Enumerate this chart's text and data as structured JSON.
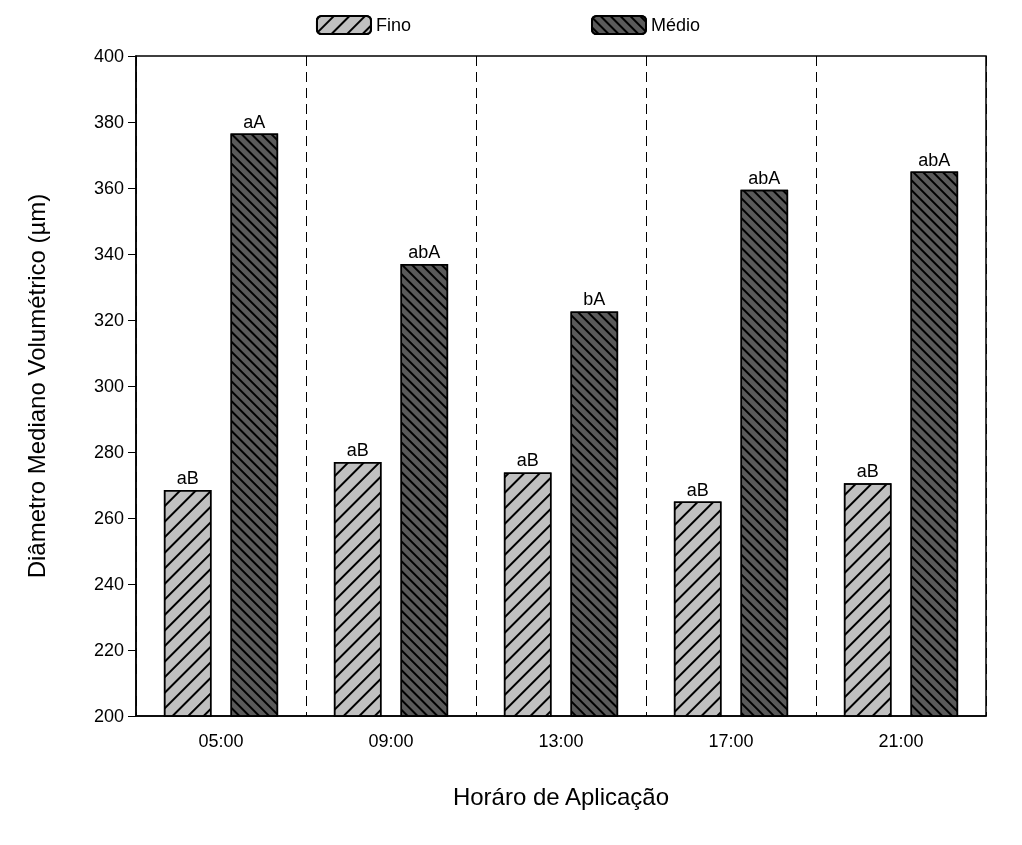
{
  "chart_data": {
    "type": "bar",
    "xlabel": "Horáro de Aplicação",
    "ylabel": "Diâmetro Mediano Volumétrico (µm)",
    "categories": [
      "05:00",
      "09:00",
      "13:00",
      "17:00",
      "21:00"
    ],
    "series": [
      {
        "name": "Fino",
        "color": "#c0c0c0",
        "values": [
          268.5,
          277,
          273.8,
          265,
          270.5
        ],
        "value_labels": [
          "aB",
          "aB",
          "aB",
          "aB",
          "aB"
        ]
      },
      {
        "name": "Médio",
        "color": "#5a5a5a",
        "values": [
          376.5,
          337,
          322.6,
          359.5,
          365
        ],
        "value_labels": [
          "aA",
          "abA",
          "bA",
          "abA",
          "abA"
        ]
      }
    ],
    "ylim": [
      200,
      400
    ],
    "yticks": [
      200,
      220,
      240,
      260,
      280,
      300,
      320,
      340,
      360,
      380,
      400
    ],
    "grid": "x",
    "legend": "top"
  }
}
